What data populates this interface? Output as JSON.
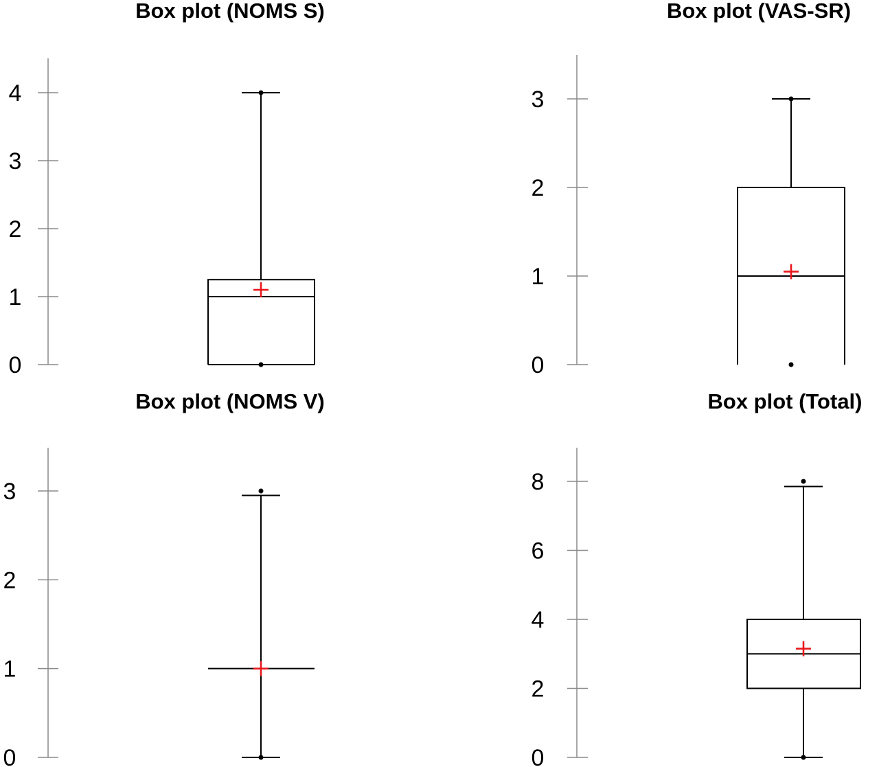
{
  "chart_data": [
    {
      "type": "box",
      "title": "Box plot (NOMS  S)",
      "ylim": [
        0,
        4.5
      ],
      "yticks": [
        0,
        1,
        2,
        3,
        4
      ],
      "grid": false,
      "box": {
        "min": 0,
        "q1": 0,
        "median": 1,
        "q3": 1.25,
        "max": 4,
        "mean": 1.1
      },
      "points": [
        0,
        4
      ]
    },
    {
      "type": "box",
      "title": "Box plot (VAS-SR)",
      "ylim": [
        0,
        3.5
      ],
      "yticks": [
        0,
        1,
        2,
        3
      ],
      "grid": false,
      "box": {
        "min": 0,
        "q1": 0,
        "median": 1,
        "q3": 2,
        "max": 3,
        "mean": 1.05
      },
      "points": [
        0,
        3
      ]
    },
    {
      "type": "box",
      "title": "Box plot (NOMS  V)",
      "ylim": [
        0,
        3.5
      ],
      "yticks": [
        0,
        1,
        2,
        3
      ],
      "grid": false,
      "box": {
        "min": 0,
        "q1": 1,
        "median": 1,
        "q3": 1,
        "max": 2.95,
        "mean": 1.0
      },
      "points": [
        0,
        3
      ]
    },
    {
      "type": "box",
      "title": "Box plot (Total)",
      "ylim": [
        0,
        9
      ],
      "yticks": [
        0,
        2,
        4,
        6,
        8
      ],
      "grid": false,
      "box": {
        "min": 0,
        "q1": 2,
        "median": 3,
        "q3": 4,
        "max": 7.85,
        "mean": 3.15
      },
      "points": [
        0,
        8
      ]
    }
  ]
}
